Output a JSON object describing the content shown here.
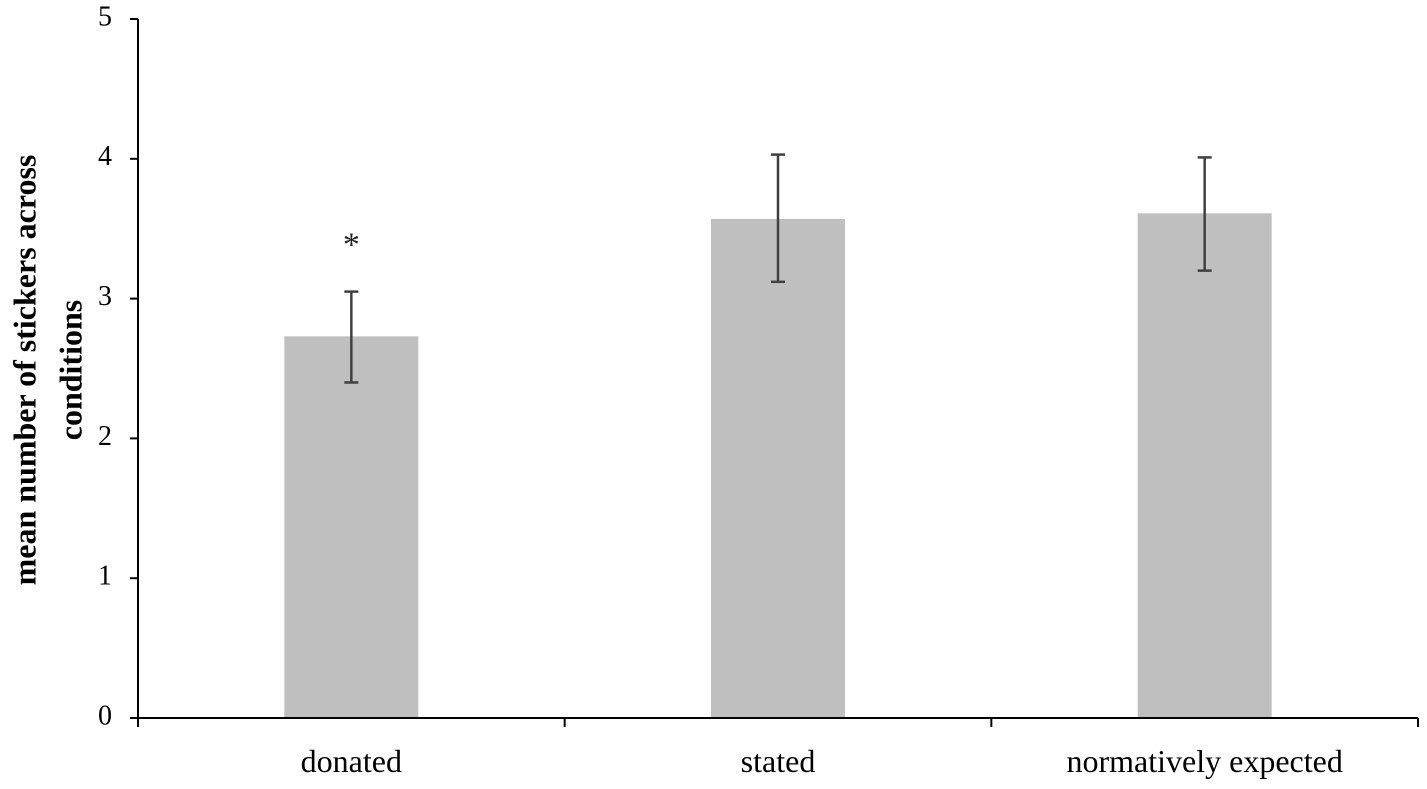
{
  "chart_data": {
    "type": "bar",
    "title": "",
    "xlabel": "",
    "ylabel_lines": [
      "mean number of stickers across",
      "conditions"
    ],
    "categories": [
      "donated",
      "stated",
      "normatively expected"
    ],
    "values": [
      2.73,
      3.57,
      3.61
    ],
    "error_low": [
      2.4,
      3.12,
      3.2
    ],
    "error_high": [
      3.05,
      4.03,
      4.01
    ],
    "annotations": [
      {
        "category_index": 0,
        "text": "*"
      }
    ],
    "ylim": [
      0,
      5
    ],
    "yticks": [
      0,
      1,
      2,
      3,
      4,
      5
    ],
    "grid": false,
    "legend": "none",
    "bar_color": "#bfbfbf",
    "error_bar_color": "#404040",
    "axis_color": "#000000"
  }
}
